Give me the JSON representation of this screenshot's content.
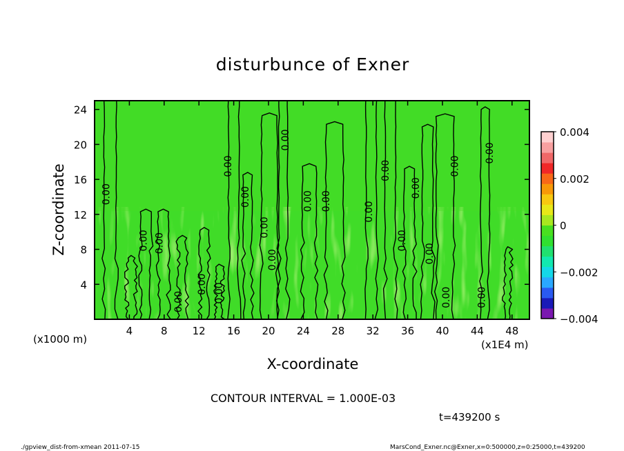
{
  "chart_data": {
    "type": "heatmap",
    "title": "disturbunce of Exner",
    "xlabel": "X-coordinate",
    "ylabel": "Z-coordinate",
    "x_unit": "(x1E4 m)",
    "y_unit": "(x1000 m)",
    "xlim": [
      0,
      50
    ],
    "ylim": [
      0,
      25
    ],
    "x_ticks": [
      4,
      8,
      12,
      16,
      20,
      24,
      28,
      32,
      36,
      40,
      44,
      48
    ],
    "y_ticks": [
      4,
      8,
      12,
      16,
      20,
      24
    ],
    "colorbar": {
      "range": [
        -0.004,
        0.004
      ],
      "tick_values": [
        0.004,
        0.002,
        0,
        -0.002,
        -0.004
      ],
      "tick_labels": [
        "0.004",
        "0.002",
        "0",
        "−0.002",
        "−0.004"
      ],
      "colors": [
        "#7a18b0",
        "#1a1ab8",
        "#2a5af0",
        "#2aa8ff",
        "#14d8e8",
        "#12e8b0",
        "#20e070",
        "#30e030",
        "#48e020",
        "#a8e820",
        "#e8e818",
        "#f8c810",
        "#f89808",
        "#f86818",
        "#f02828",
        "#f06868",
        "#f8a0a0",
        "#ffd0d0"
      ]
    },
    "contour_interval_text": "CONTOUR INTERVAL = 1.000E-03",
    "contour_label": "0.00",
    "contour_label_positions": [
      {
        "x": 1.7,
        "z": 14.3
      },
      {
        "x": 6.0,
        "z": 9.0
      },
      {
        "x": 7.8,
        "z": 8.7
      },
      {
        "x": 10.0,
        "z": 2.0
      },
      {
        "x": 12.7,
        "z": 4.0
      },
      {
        "x": 14.7,
        "z": 3.0
      },
      {
        "x": 15.7,
        "z": 17.5
      },
      {
        "x": 17.7,
        "z": 14.0
      },
      {
        "x": 19.9,
        "z": 10.5
      },
      {
        "x": 20.8,
        "z": 6.8
      },
      {
        "x": 22.3,
        "z": 20.5
      },
      {
        "x": 24.9,
        "z": 13.5
      },
      {
        "x": 27.0,
        "z": 13.5
      },
      {
        "x": 31.9,
        "z": 12.3
      },
      {
        "x": 33.8,
        "z": 17.0
      },
      {
        "x": 35.7,
        "z": 9.0
      },
      {
        "x": 37.3,
        "z": 15.0
      },
      {
        "x": 38.9,
        "z": 7.5
      },
      {
        "x": 40.8,
        "z": 2.5
      },
      {
        "x": 41.8,
        "z": 17.5
      },
      {
        "x": 44.9,
        "z": 2.5
      },
      {
        "x": 45.8,
        "z": 19.0
      }
    ],
    "time_text": "t=439200 s"
  },
  "footer": {
    "left": "./gpview_dist-from-xmean   2011-07-15",
    "right": "MarsCond_Exner.nc@Exner,x=0:500000,z=0:25000,t=439200"
  }
}
